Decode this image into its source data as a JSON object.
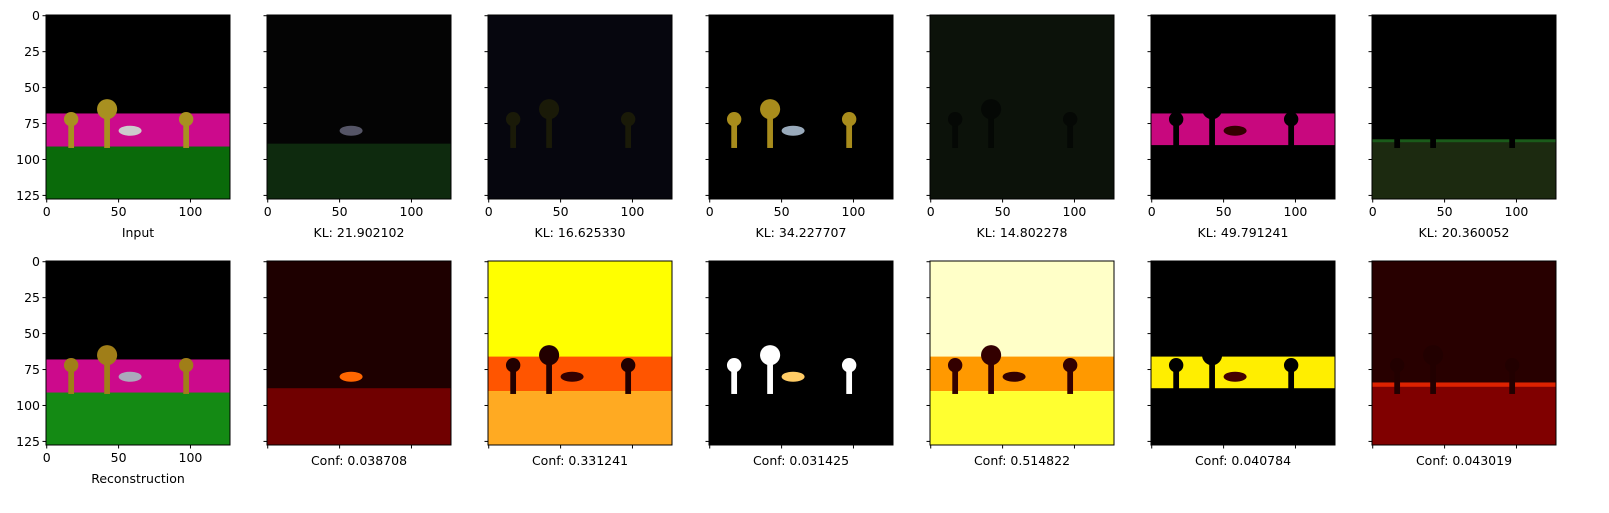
{
  "axis": {
    "xticks": [
      0,
      50,
      100
    ],
    "yticks": [
      0,
      25,
      50,
      75,
      100,
      125
    ],
    "lim": [
      -0.5,
      127.5
    ]
  },
  "top_row": {
    "labels": [
      "Input",
      "KL: 21.902102",
      "KL: 16.625330",
      "KL: 34.227707",
      "KL: 14.802278",
      "KL: 49.791241",
      "KL: 20.360052"
    ]
  },
  "bottom_row": {
    "labels": [
      "Reconstruction",
      "Conf: 0.038708",
      "Conf: 0.331241",
      "Conf: 0.031425",
      "Conf: 0.514822",
      "Conf: 0.040784",
      "Conf: 0.043019"
    ]
  }
}
